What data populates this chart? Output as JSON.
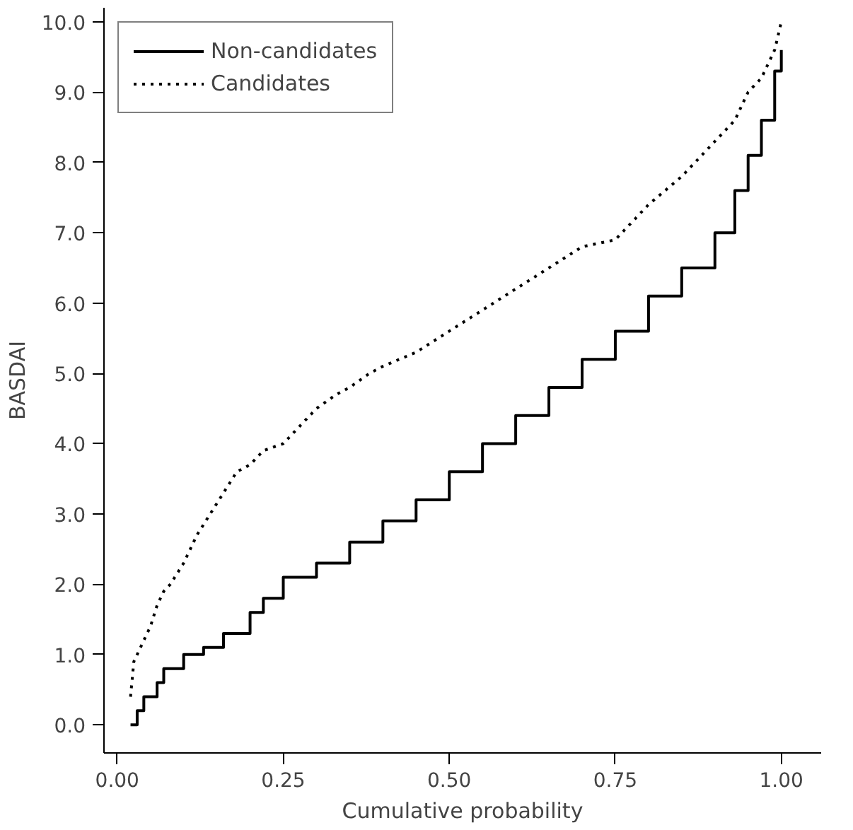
{
  "chart_data": {
    "type": "line",
    "xlabel": "Cumulative probability",
    "ylabel": "BASDAI",
    "xlim": [
      -0.02,
      1.06
    ],
    "ylim": [
      -0.4,
      10.2
    ],
    "xticks": [
      {
        "value": 0,
        "label": "0.00"
      },
      {
        "value": 0.25,
        "label": "0.25"
      },
      {
        "value": 0.5,
        "label": "0.50"
      },
      {
        "value": 0.75,
        "label": "0.75"
      },
      {
        "value": 1,
        "label": "1.00"
      }
    ],
    "yticks": [
      {
        "value": 0,
        "label": "0.0"
      },
      {
        "value": 1,
        "label": "1.0"
      },
      {
        "value": 2,
        "label": "2.0"
      },
      {
        "value": 3,
        "label": "3.0"
      },
      {
        "value": 4,
        "label": "4.0"
      },
      {
        "value": 5,
        "label": "5.0"
      },
      {
        "value": 6,
        "label": "6.0"
      },
      {
        "value": 7,
        "label": "7.0"
      },
      {
        "value": 8,
        "label": "8.0"
      },
      {
        "value": 9,
        "label": "9.0"
      },
      {
        "value": 10,
        "label": "10.0"
      }
    ],
    "grid": false,
    "legend": "top left",
    "series": [
      {
        "name": "Non-candidates",
        "type": "step",
        "line_style": "solid",
        "color": "#000000",
        "x": [
          0.02,
          0.03,
          0.04,
          0.06,
          0.07,
          0.1,
          0.13,
          0.16,
          0.2,
          0.22,
          0.25,
          0.3,
          0.35,
          0.4,
          0.45,
          0.5,
          0.55,
          0.6,
          0.65,
          0.7,
          0.75,
          0.8,
          0.85,
          0.9,
          0.93,
          0.95,
          0.97,
          0.99,
          1.0
        ],
        "values": [
          0.0,
          0.2,
          0.4,
          0.6,
          0.8,
          1.0,
          1.1,
          1.3,
          1.6,
          1.8,
          2.1,
          2.3,
          2.6,
          2.9,
          3.2,
          3.6,
          4.0,
          4.4,
          4.8,
          5.2,
          5.6,
          6.1,
          6.5,
          7.0,
          7.6,
          8.1,
          8.6,
          9.3,
          9.6
        ]
      },
      {
        "name": "Candidates",
        "line_style": "dotted",
        "color": "#000000",
        "x": [
          0.02,
          0.025,
          0.03,
          0.04,
          0.05,
          0.06,
          0.07,
          0.08,
          0.1,
          0.12,
          0.14,
          0.16,
          0.18,
          0.2,
          0.22,
          0.25,
          0.28,
          0.3,
          0.33,
          0.35,
          0.38,
          0.4,
          0.45,
          0.5,
          0.55,
          0.6,
          0.65,
          0.7,
          0.75,
          0.78,
          0.8,
          0.85,
          0.88,
          0.9,
          0.93,
          0.95,
          0.97,
          0.99,
          1.0
        ],
        "values": [
          0.4,
          0.9,
          1.0,
          1.2,
          1.4,
          1.7,
          1.9,
          2.0,
          2.3,
          2.7,
          3.0,
          3.3,
          3.6,
          3.7,
          3.9,
          4.0,
          4.3,
          4.5,
          4.7,
          4.8,
          5.0,
          5.1,
          5.3,
          5.6,
          5.9,
          6.2,
          6.5,
          6.8,
          6.9,
          7.2,
          7.4,
          7.8,
          8.1,
          8.3,
          8.6,
          9.0,
          9.2,
          9.6,
          10.0
        ]
      }
    ]
  }
}
